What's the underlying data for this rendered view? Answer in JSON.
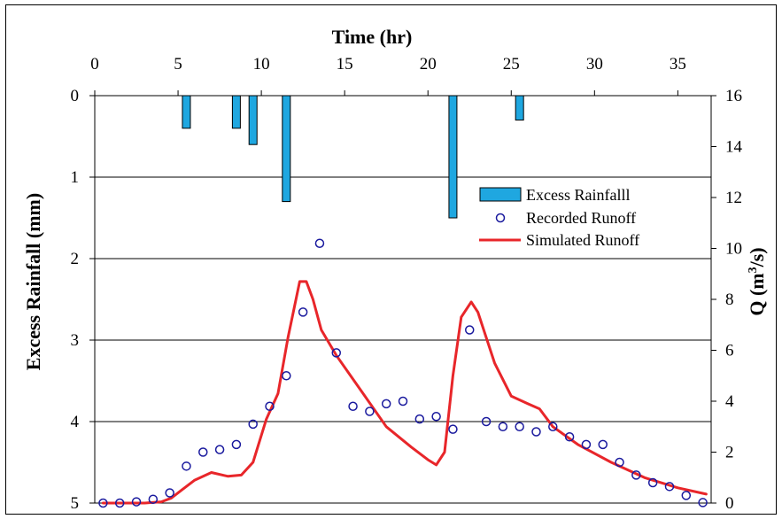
{
  "chart_data": {
    "type": "bar+scatter+line",
    "x_axis": {
      "title": "Time (hr)",
      "position": "top",
      "range": [
        0,
        37
      ],
      "ticks": [
        0,
        5,
        10,
        15,
        20,
        25,
        30,
        35
      ]
    },
    "y_left": {
      "title": "Excess Rainfall (mm)",
      "range": [
        0,
        5
      ],
      "inverted": true,
      "ticks": [
        0,
        1,
        2,
        3,
        4,
        5
      ]
    },
    "y_right": {
      "title_prefix": "Q (m",
      "title_sup": "3",
      "title_suffix": "/s)",
      "range": [
        0,
        16
      ],
      "ticks": [
        0,
        2,
        4,
        6,
        8,
        10,
        12,
        14,
        16
      ]
    },
    "grid": "horizontal at left-axis major ticks",
    "legend": {
      "placement": "right-middle",
      "entries": [
        "Excess Rainfalll",
        "Recorded Runoff",
        "Simulated Runoff"
      ]
    },
    "series": [
      {
        "name": "Excess Rainfalll",
        "type": "bar",
        "axis": "left",
        "color": "#1fa7e0",
        "x": [
          5.5,
          8.5,
          9.5,
          11.5,
          21.5,
          25.5
        ],
        "values": [
          0.4,
          0.4,
          0.6,
          1.3,
          1.5,
          0.3
        ]
      },
      {
        "name": "Recorded Runoff",
        "type": "scatter",
        "axis": "right",
        "color": "#1a1a9e",
        "x": [
          0.5,
          1.5,
          2.5,
          3.5,
          4.5,
          5.5,
          6.5,
          7.5,
          8.5,
          9.5,
          10.5,
          11.5,
          12.5,
          13.5,
          14.5,
          15.5,
          16.5,
          17.5,
          18.5,
          19.5,
          20.5,
          21.5,
          22.5,
          23.5,
          24.5,
          25.5,
          26.5,
          27.5,
          28.5,
          29.5,
          30.5,
          31.5,
          32.5,
          33.5,
          34.5,
          35.5,
          36.5
        ],
        "values": [
          0.0,
          0.0,
          0.05,
          0.15,
          0.4,
          1.45,
          2.0,
          2.1,
          2.3,
          3.1,
          3.8,
          5.0,
          7.5,
          10.2,
          5.9,
          3.8,
          3.6,
          3.9,
          4.0,
          3.3,
          3.4,
          2.9,
          6.8,
          3.2,
          3.0,
          3.0,
          2.8,
          3.0,
          2.6,
          2.3,
          2.3,
          1.6,
          1.1,
          0.8,
          0.65,
          0.3,
          0.02
        ]
      },
      {
        "name": "Simulated Runoff",
        "type": "line",
        "axis": "right",
        "color": "#e8262a",
        "x": [
          0.5,
          2,
          3,
          4,
          4.6,
          5.2,
          6,
          7,
          8,
          8.8,
          9.5,
          10.3,
          11,
          11.6,
          12.3,
          12.7,
          13.1,
          13.6,
          14.5,
          16,
          17.5,
          19,
          20,
          20.5,
          21,
          21.5,
          22,
          22.6,
          23,
          24,
          25,
          26,
          26.7,
          27.5,
          29,
          31,
          33,
          35,
          36.7
        ],
        "values": [
          0,
          0,
          0,
          0.05,
          0.2,
          0.5,
          0.9,
          1.2,
          1.05,
          1.1,
          1.6,
          3.3,
          4.3,
          6.5,
          8.7,
          8.7,
          8.0,
          6.8,
          5.8,
          4.4,
          3.0,
          2.2,
          1.7,
          1.5,
          2.0,
          5.0,
          7.3,
          7.9,
          7.5,
          5.5,
          4.2,
          3.9,
          3.7,
          3.0,
          2.3,
          1.6,
          1.0,
          0.6,
          0.35
        ]
      }
    ]
  }
}
